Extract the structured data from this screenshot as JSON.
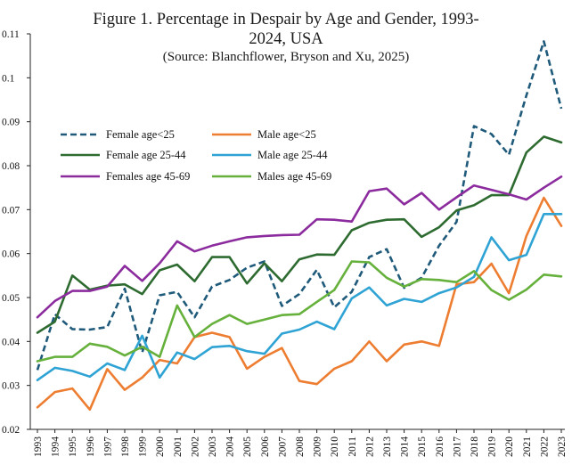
{
  "chart_data": {
    "type": "line",
    "title_line1": "Figure 1.  Percentage in Despair by Age and Gender, 1993-",
    "title_line2": "2024, USA",
    "subtitle": "(Source: Blanchflower, Bryson and Xu, 2025)",
    "xlabel": "",
    "ylabel": "",
    "x": [
      "1993",
      "1994",
      "1995",
      "1996",
      "1997",
      "1998",
      "1999",
      "2000",
      "2001",
      "2002",
      "2003",
      "2004",
      "2005",
      "2006",
      "2007",
      "2008",
      "2009",
      "2010",
      "2011",
      "2012",
      "2013",
      "2014",
      "2015",
      "2016",
      "2017",
      "2018",
      "2019",
      "2020",
      "2021",
      "2022",
      "2023"
    ],
    "ylim": [
      0.02,
      0.11
    ],
    "yticks": [
      "0.02",
      "0.03",
      "0.04",
      "0.05",
      "0.06",
      "0.07",
      "0.08",
      "0.09",
      "0.1",
      "0.11"
    ],
    "grid": false,
    "legend_position": "upper-left",
    "series": [
      {
        "name": "Female age<25",
        "color": "#1f5a7a",
        "dash": true,
        "values": [
          0.0335,
          0.0462,
          0.0428,
          0.0427,
          0.0433,
          0.052,
          0.0375,
          0.0505,
          0.0513,
          0.0455,
          0.0525,
          0.054,
          0.0568,
          0.0582,
          0.0481,
          0.0508,
          0.0563,
          0.0478,
          0.0513,
          0.0592,
          0.061,
          0.0522,
          0.0545,
          0.0618,
          0.0672,
          0.089,
          0.0872,
          0.0825,
          0.096,
          0.1083,
          0.093
        ]
      },
      {
        "name": "Male age<25",
        "color": "#ed7d31",
        "dash": false,
        "values": [
          0.025,
          0.0285,
          0.0293,
          0.0245,
          0.0337,
          0.029,
          0.0318,
          0.0358,
          0.035,
          0.041,
          0.042,
          0.041,
          0.0338,
          0.0365,
          0.0385,
          0.031,
          0.0303,
          0.0338,
          0.0355,
          0.04,
          0.0355,
          0.0393,
          0.04,
          0.039,
          0.053,
          0.0535,
          0.0577,
          0.051,
          0.064,
          0.0727,
          0.0663
        ]
      },
      {
        "name": "Female age 25-44",
        "color": "#2e6b30",
        "dash": false,
        "values": [
          0.042,
          0.0445,
          0.055,
          0.0518,
          0.0527,
          0.053,
          0.0508,
          0.0562,
          0.0575,
          0.0537,
          0.0592,
          0.0592,
          0.0532,
          0.0578,
          0.0537,
          0.0587,
          0.0598,
          0.0597,
          0.0653,
          0.067,
          0.0677,
          0.0678,
          0.0638,
          0.066,
          0.0698,
          0.071,
          0.0733,
          0.0733,
          0.083,
          0.0866,
          0.0853
        ]
      },
      {
        "name": "Male age 25-44",
        "color": "#2ea3d4",
        "dash": false,
        "values": [
          0.0312,
          0.034,
          0.0333,
          0.032,
          0.035,
          0.0335,
          0.0413,
          0.0318,
          0.0375,
          0.036,
          0.0387,
          0.039,
          0.0378,
          0.0372,
          0.0418,
          0.0427,
          0.0445,
          0.0428,
          0.0498,
          0.0523,
          0.0482,
          0.0497,
          0.049,
          0.051,
          0.0523,
          0.0547,
          0.0637,
          0.0585,
          0.0597,
          0.069,
          0.069
        ]
      },
      {
        "name": "Females age 45-69",
        "color": "#8b2b9e",
        "dash": false,
        "values": [
          0.0455,
          0.0492,
          0.0515,
          0.0515,
          0.0525,
          0.0572,
          0.0538,
          0.0578,
          0.0628,
          0.0605,
          0.0618,
          0.0628,
          0.0637,
          0.064,
          0.0642,
          0.0643,
          0.0678,
          0.0677,
          0.0673,
          0.0742,
          0.0748,
          0.0712,
          0.0738,
          0.07,
          0.0728,
          0.0755,
          0.0745,
          0.0735,
          0.0723,
          0.075,
          0.0775
        ]
      },
      {
        "name": "Males age 45-69",
        "color": "#66b03c",
        "dash": false,
        "values": [
          0.0355,
          0.0365,
          0.0365,
          0.0395,
          0.0388,
          0.0368,
          0.0388,
          0.0365,
          0.0482,
          0.041,
          0.044,
          0.046,
          0.044,
          0.045,
          0.046,
          0.0462,
          0.049,
          0.0517,
          0.0582,
          0.058,
          0.0545,
          0.0525,
          0.0542,
          0.054,
          0.0535,
          0.056,
          0.0517,
          0.0495,
          0.0518,
          0.0552,
          0.0548
        ]
      }
    ]
  }
}
